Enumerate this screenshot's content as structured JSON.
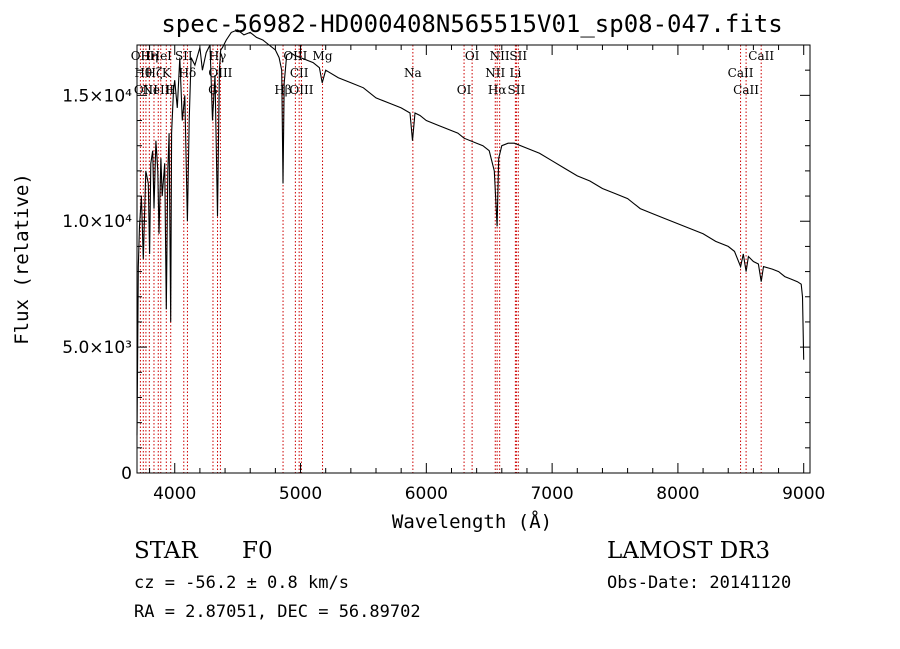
{
  "chart_data": {
    "type": "line",
    "title": "spec-56982-HD000408N565515V01_sp08-047.fits",
    "xlabel": "Wavelength (Å)",
    "ylabel": "Flux (relative)",
    "xlim": [
      3700,
      9050
    ],
    "ylim": [
      0,
      17000
    ],
    "x_ticks": [
      {
        "value": 4000,
        "label": "4000"
      },
      {
        "value": 5000,
        "label": "5000"
      },
      {
        "value": 6000,
        "label": "6000"
      },
      {
        "value": 7000,
        "label": "7000"
      },
      {
        "value": 8000,
        "label": "8000"
      },
      {
        "value": 9000,
        "label": "9000"
      }
    ],
    "y_ticks": [
      {
        "value": 0,
        "label": "0"
      },
      {
        "value": 5000,
        "label": "5.0×10³"
      },
      {
        "value": 10000,
        "label": "1.0×10⁴"
      },
      {
        "value": 15000,
        "label": "1.5×10⁴"
      }
    ],
    "series": [
      {
        "name": "spectrum",
        "x": [
          3700,
          3705,
          3710,
          3720,
          3735,
          3750,
          3770,
          3790,
          3800,
          3810,
          3825,
          3835,
          3850,
          3865,
          3875,
          3890,
          3900,
          3920,
          3933,
          3945,
          3955,
          3968,
          3975,
          3990,
          4000,
          4020,
          4040,
          4060,
          4080,
          4101,
          4115,
          4130,
          4160,
          4200,
          4220,
          4250,
          4280,
          4300,
          4320,
          4340,
          4355,
          4365,
          4380,
          4410,
          4450,
          4500,
          4550,
          4600,
          4650,
          4700,
          4750,
          4800,
          4830,
          4850,
          4861,
          4870,
          4890,
          4920,
          4950,
          5000,
          5050,
          5100,
          5150,
          5172,
          5200,
          5300,
          5400,
          5500,
          5600,
          5700,
          5800,
          5870,
          5890,
          5910,
          5950,
          6000,
          6100,
          6200,
          6250,
          6300,
          6400,
          6450,
          6500,
          6540,
          6563,
          6575,
          6600,
          6650,
          6700,
          6800,
          6900,
          7000,
          7100,
          7200,
          7300,
          7400,
          7500,
          7600,
          7700,
          7800,
          7900,
          8000,
          8100,
          8200,
          8300,
          8400,
          8450,
          8498,
          8520,
          8542,
          8560,
          8600,
          8640,
          8662,
          8680,
          8750,
          8800,
          8850,
          8900,
          8950,
          8980,
          8990,
          9000
        ],
        "values": [
          1500,
          4500,
          8200,
          9800,
          11000,
          8500,
          12000,
          11500,
          8700,
          12300,
          12800,
          10500,
          13200,
          12000,
          9500,
          12500,
          11000,
          12300,
          6500,
          12000,
          13500,
          6000,
          13500,
          15200,
          15600,
          14500,
          16500,
          14000,
          15000,
          10000,
          14000,
          16500,
          16200,
          16900,
          16000,
          16700,
          17000,
          14000,
          15800,
          10200,
          16000,
          16800,
          16900,
          17200,
          17500,
          17600,
          17400,
          17500,
          17300,
          17200,
          17000,
          16800,
          16500,
          16000,
          11500,
          15500,
          16600,
          16700,
          16600,
          16500,
          16400,
          16300,
          16100,
          15500,
          16000,
          15700,
          15500,
          15300,
          14900,
          14700,
          14500,
          14300,
          13200,
          14300,
          14200,
          14000,
          13800,
          13600,
          13500,
          13300,
          13100,
          13000,
          12800,
          12000,
          9800,
          12500,
          13000,
          13100,
          13100,
          12900,
          12700,
          12400,
          12100,
          11800,
          11600,
          11300,
          11100,
          10900,
          10500,
          10300,
          10100,
          9900,
          9700,
          9500,
          9200,
          9000,
          8800,
          8200,
          8700,
          8000,
          8600,
          8400,
          8300,
          7600,
          8200,
          8100,
          8000,
          7800,
          7700,
          7600,
          7500,
          7000,
          4500
        ]
      }
    ],
    "line_markers": [
      {
        "wavelength": 3727,
        "label": "OII"
      },
      {
        "wavelength": 3750,
        "label": "Hθ"
      },
      {
        "wavelength": 3771,
        "label": "OIII"
      },
      {
        "wavelength": 3798,
        "label": "Hη"
      },
      {
        "wavelength": 3835,
        "label": "Hζ"
      },
      {
        "wavelength": 3869,
        "label": "NeIII"
      },
      {
        "wavelength": 3889,
        "label": "HeI"
      },
      {
        "wavelength": 3933,
        "label": "K"
      },
      {
        "wavelength": 3968,
        "label": "H"
      },
      {
        "wavelength": 4072,
        "label": "SII"
      },
      {
        "wavelength": 4101,
        "label": "Hδ"
      },
      {
        "wavelength": 4304,
        "label": "G"
      },
      {
        "wavelength": 4340,
        "label": "Hγ"
      },
      {
        "wavelength": 4363,
        "label": "OIII"
      },
      {
        "wavelength": 4861,
        "label": "Hβ"
      },
      {
        "wavelength": 4959,
        "label": "OIII"
      },
      {
        "wavelength": 4989,
        "label": "CII"
      },
      {
        "wavelength": 5007,
        "label": "OIII"
      },
      {
        "wavelength": 5175,
        "label": "Mg"
      },
      {
        "wavelength": 5893,
        "label": "Na"
      },
      {
        "wavelength": 6300,
        "label": "OI"
      },
      {
        "wavelength": 6364,
        "label": "OI"
      },
      {
        "wavelength": 6548,
        "label": "NII"
      },
      {
        "wavelength": 6563,
        "label": "Hα"
      },
      {
        "wavelength": 6583,
        "label": "NII"
      },
      {
        "wavelength": 6708,
        "label": "Li"
      },
      {
        "wavelength": 6716,
        "label": "SII"
      },
      {
        "wavelength": 6731,
        "label": "SII"
      },
      {
        "wavelength": 8498,
        "label": "CaII"
      },
      {
        "wavelength": 8542,
        "label": "CaII"
      },
      {
        "wavelength": 8662,
        "label": "CaII"
      }
    ]
  },
  "info": {
    "object_type": "STAR",
    "subclass": "F0",
    "survey": "LAMOST DR3",
    "velocity": "cz = -56.2 ± 0.8 km/s",
    "obs_date": "Obs-Date: 20141120",
    "coords": "RA =   2.87051, DEC =  56.89702"
  },
  "colors": {
    "line": "#000000",
    "marker": "#cc0000",
    "background": "#ffffff"
  }
}
